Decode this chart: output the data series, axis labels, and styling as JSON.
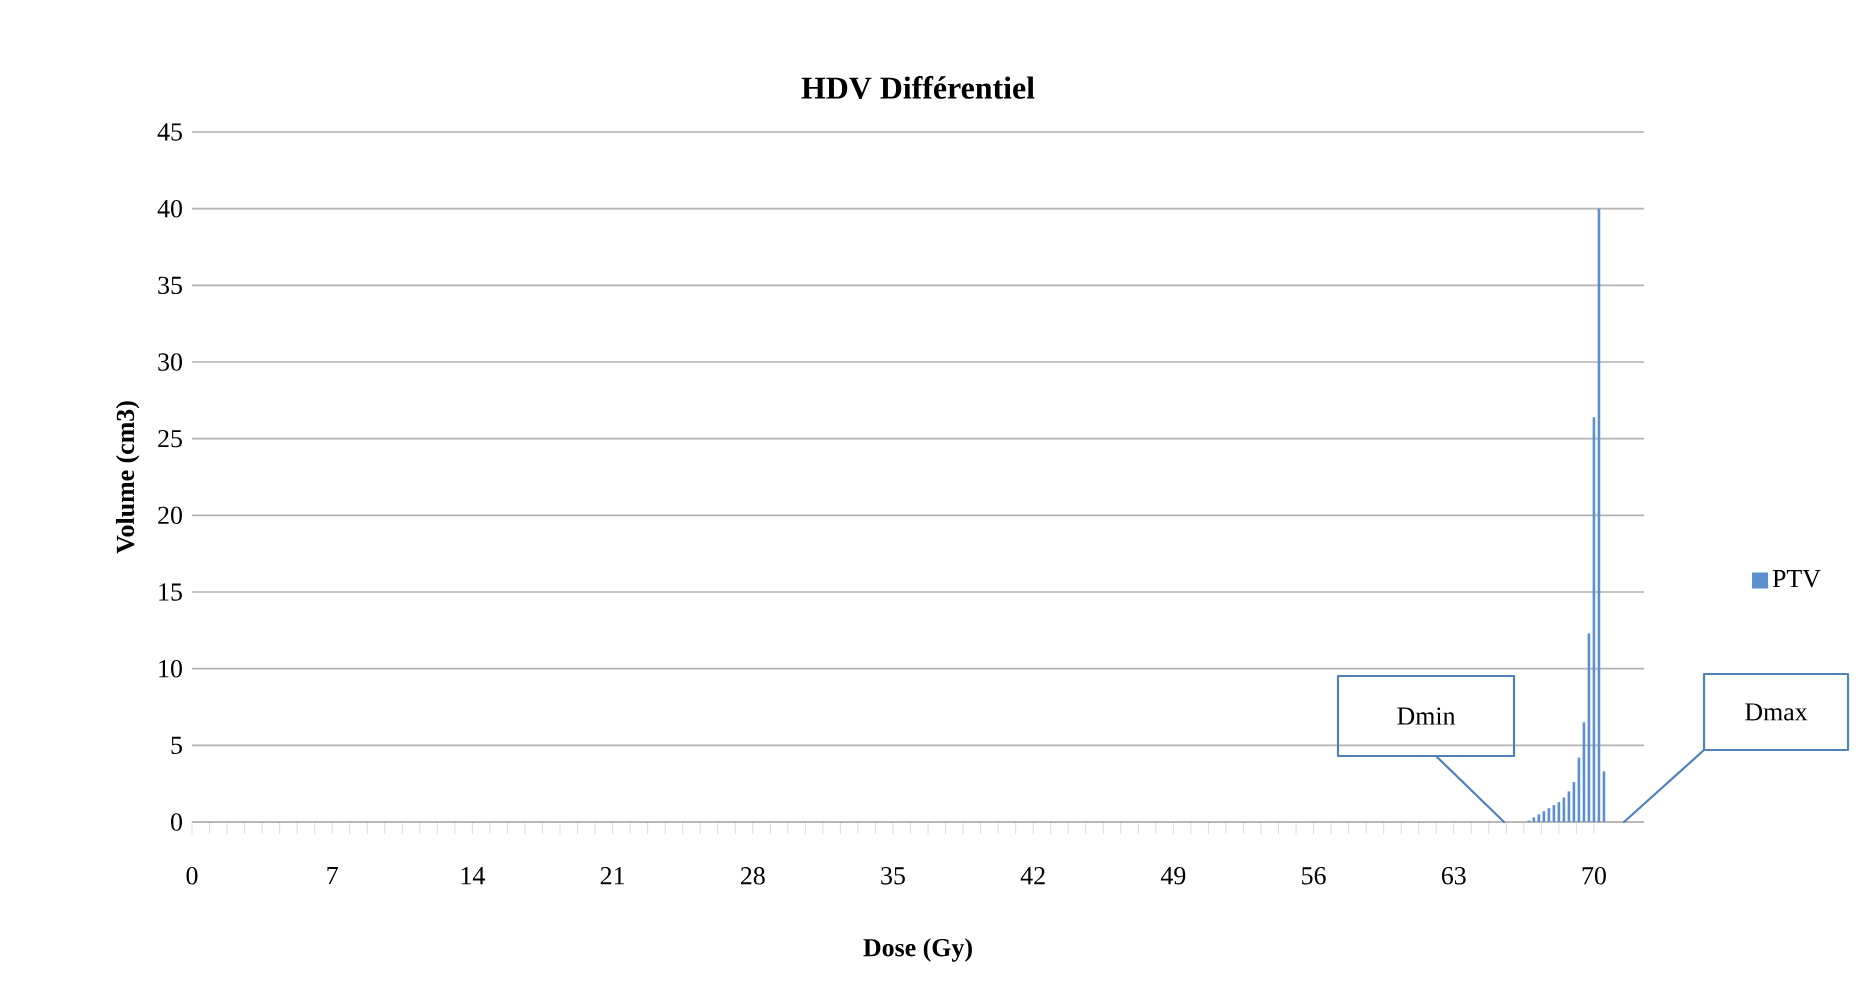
{
  "chart_data": {
    "type": "bar",
    "title": "HDV Différentiel",
    "xlabel": "Dose (Gy)",
    "ylabel": "Volume (cm3)",
    "x": [
      66.75,
      67.0,
      67.25,
      67.5,
      67.75,
      68.0,
      68.25,
      68.5,
      68.75,
      69.0,
      69.25,
      69.5,
      69.75,
      70.0,
      70.25,
      70.5
    ],
    "series": [
      {
        "name": "PTV",
        "color": "#5b8fd0",
        "values": [
          0.1,
          0.3,
          0.5,
          0.7,
          0.9,
          1.1,
          1.3,
          1.6,
          2.0,
          2.6,
          4.2,
          6.5,
          12.3,
          26.4,
          40,
          3.3
        ]
      }
    ],
    "xlim": [
      0,
      72.5
    ],
    "xticks": [
      0,
      7,
      14,
      21,
      28,
      35,
      42,
      49,
      56,
      63,
      70
    ],
    "ylim": [
      0,
      45
    ],
    "yticks": [
      0,
      5,
      10,
      15,
      20,
      25,
      30,
      35,
      40,
      45
    ],
    "grid": "y",
    "legend": "right",
    "annotations": [
      "Dmin",
      "Dmax"
    ]
  }
}
